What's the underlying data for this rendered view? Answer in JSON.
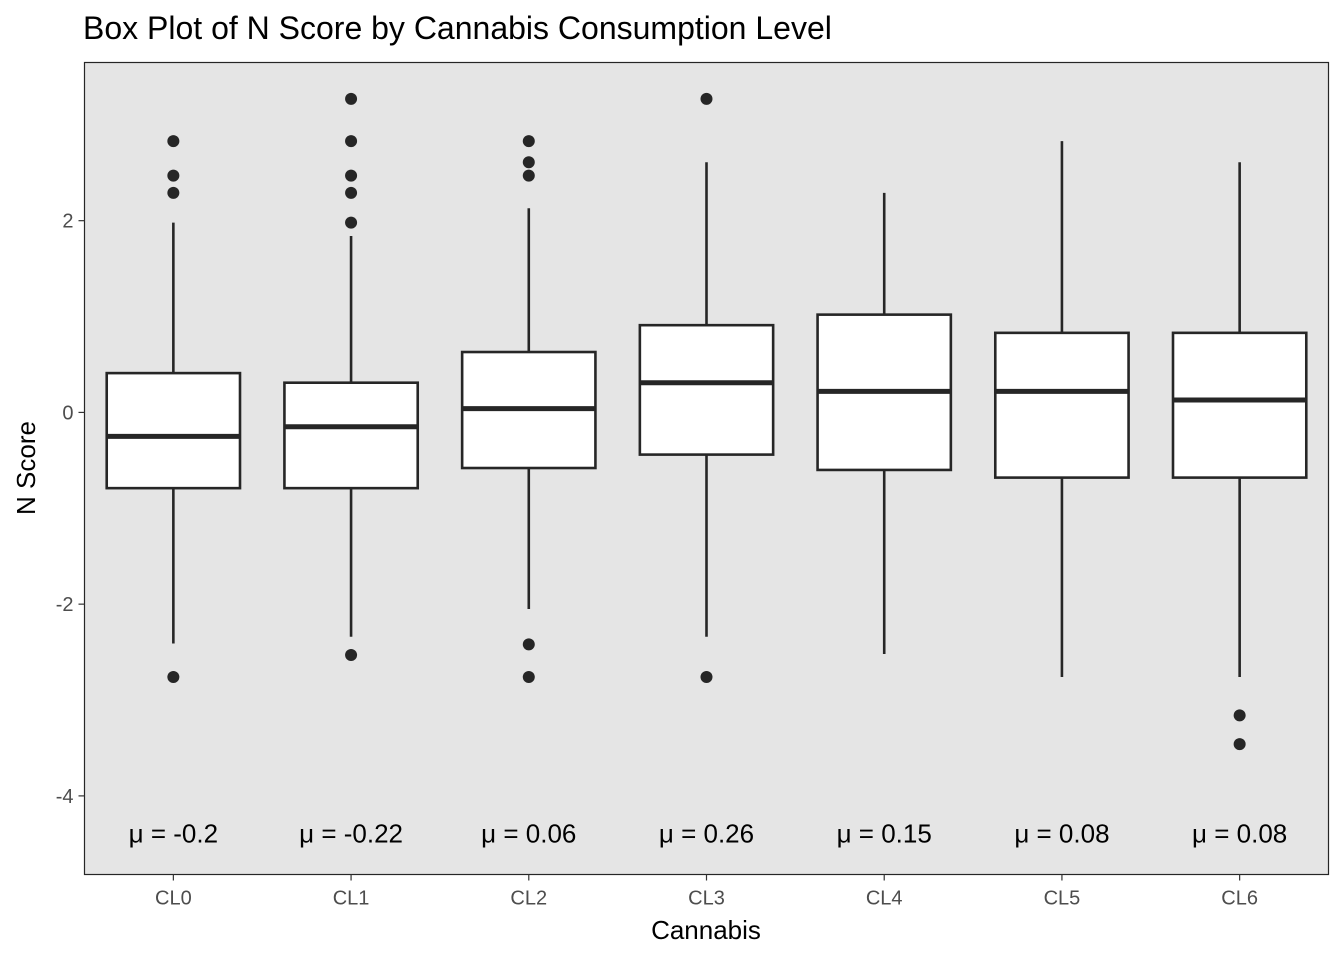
{
  "chart_data": {
    "type": "box",
    "title": "Box Plot of N Score by Cannabis Consumption Level",
    "xlabel": "Cannabis",
    "ylabel": "N Score",
    "ylim": [
      -4.82,
      3.65
    ],
    "y_ticks": [
      2,
      0,
      -2,
      -4
    ],
    "y_tick_labels": [
      "2",
      "0",
      "-2",
      "-4"
    ],
    "grid": false,
    "panel_background": "#e5e5e5",
    "box_fill": "#ffffff",
    "line_color": "#262626",
    "categories": [
      "CL0",
      "CL1",
      "CL2",
      "CL3",
      "CL4",
      "CL5",
      "CL6"
    ],
    "boxes": [
      {
        "category": "CL0",
        "lower_whisker": -2.41,
        "q1": -0.79,
        "median": -0.25,
        "q3": 0.41,
        "upper_whisker": 1.98,
        "outliers": [
          2.83,
          2.47,
          2.29,
          -2.76
        ],
        "mean_label": "μ = -0.2"
      },
      {
        "category": "CL1",
        "lower_whisker": -2.34,
        "q1": -0.79,
        "median": -0.15,
        "q3": 0.31,
        "upper_whisker": 1.84,
        "outliers": [
          3.27,
          2.83,
          2.47,
          2.29,
          1.98,
          -2.53
        ],
        "mean_label": "μ = -0.22"
      },
      {
        "category": "CL2",
        "lower_whisker": -2.05,
        "q1": -0.58,
        "median": 0.04,
        "q3": 0.63,
        "upper_whisker": 2.13,
        "outliers": [
          2.83,
          2.61,
          2.47,
          -2.42,
          -2.76
        ],
        "mean_label": "μ = 0.06"
      },
      {
        "category": "CL3",
        "lower_whisker": -2.34,
        "q1": -0.44,
        "median": 0.31,
        "q3": 0.91,
        "upper_whisker": 2.61,
        "outliers": [
          3.27,
          -2.76
        ],
        "mean_label": "μ = 0.26"
      },
      {
        "category": "CL4",
        "lower_whisker": -2.52,
        "q1": -0.6,
        "median": 0.22,
        "q3": 1.02,
        "upper_whisker": 2.29,
        "outliers": [],
        "mean_label": "μ = 0.15"
      },
      {
        "category": "CL5",
        "lower_whisker": -2.76,
        "q1": -0.68,
        "median": 0.22,
        "q3": 0.83,
        "upper_whisker": 2.83,
        "outliers": [],
        "mean_label": "μ = 0.08"
      },
      {
        "category": "CL6",
        "lower_whisker": -2.76,
        "q1": -0.68,
        "median": 0.13,
        "q3": 0.83,
        "upper_whisker": 2.61,
        "outliers": [
          -3.16,
          -3.46
        ],
        "mean_label": "μ = 0.08"
      }
    ],
    "mean_label_y": -4.39
  }
}
